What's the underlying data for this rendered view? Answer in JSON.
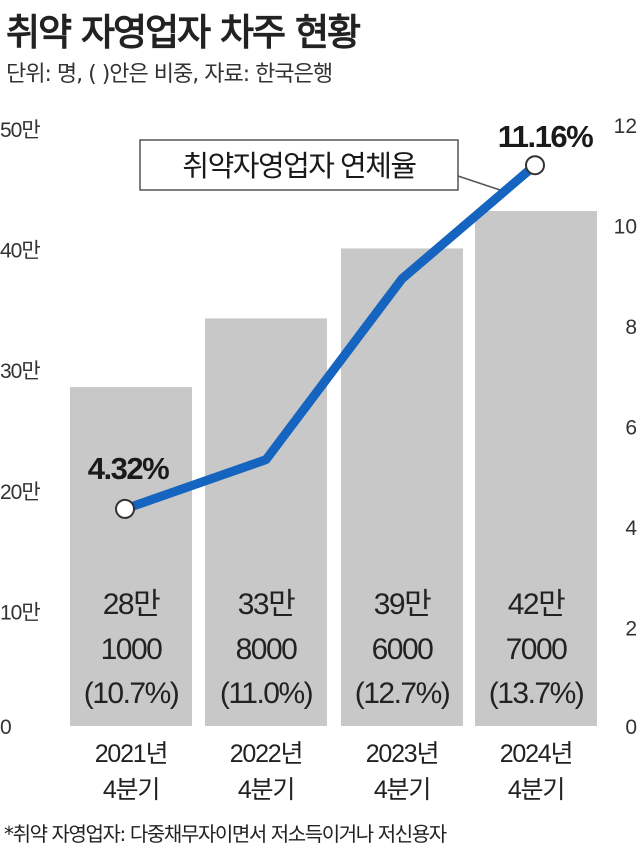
{
  "title": "취약 자영업자 차주 현황",
  "subtitle": "단위: 명, ( )안은 비중, 자료: 한국은행",
  "footnote": "*취약 자영업자: 다중채무자이면서 저소득이거나 저신용자",
  "chart_data": {
    "type": "bar+line",
    "categories": [
      [
        "2021년",
        "4분기"
      ],
      [
        "2022년",
        "4분기"
      ],
      [
        "2023년",
        "4분기"
      ],
      [
        "2024년",
        "4분기"
      ]
    ],
    "bar_series": {
      "values": [
        281000,
        338000,
        396000,
        427000
      ],
      "labels": [
        [
          "28만",
          "1000",
          "(10.7%)"
        ],
        [
          "33만",
          "8000",
          "(11.0%)"
        ],
        [
          "39만",
          "6000",
          "(12.7%)"
        ],
        [
          "42만",
          "7000",
          "(13.7%)"
        ]
      ],
      "color": "#c8c8c8",
      "label_color": "#222222"
    },
    "line_series": {
      "name": "취약자영업자 연체율",
      "values": [
        4.32,
        5.3,
        8.9,
        11.16
      ],
      "point_labels": [
        "4.32%",
        "",
        "",
        "11.16%"
      ],
      "color": "#1565c0"
    },
    "left_axis": {
      "range": [
        0,
        500000
      ],
      "ticks": [
        0,
        100000,
        200000,
        300000,
        400000,
        500000
      ],
      "tick_labels": [
        "0",
        "10만",
        "20만",
        "30만",
        "40만",
        "50만"
      ]
    },
    "right_axis": {
      "range": [
        0,
        12
      ],
      "ticks": [
        0,
        2,
        4,
        6,
        8,
        10,
        12
      ],
      "tick_labels": [
        "0",
        "2",
        "4",
        "6",
        "8",
        "10",
        "12"
      ]
    },
    "legend_placement": "top-center"
  }
}
